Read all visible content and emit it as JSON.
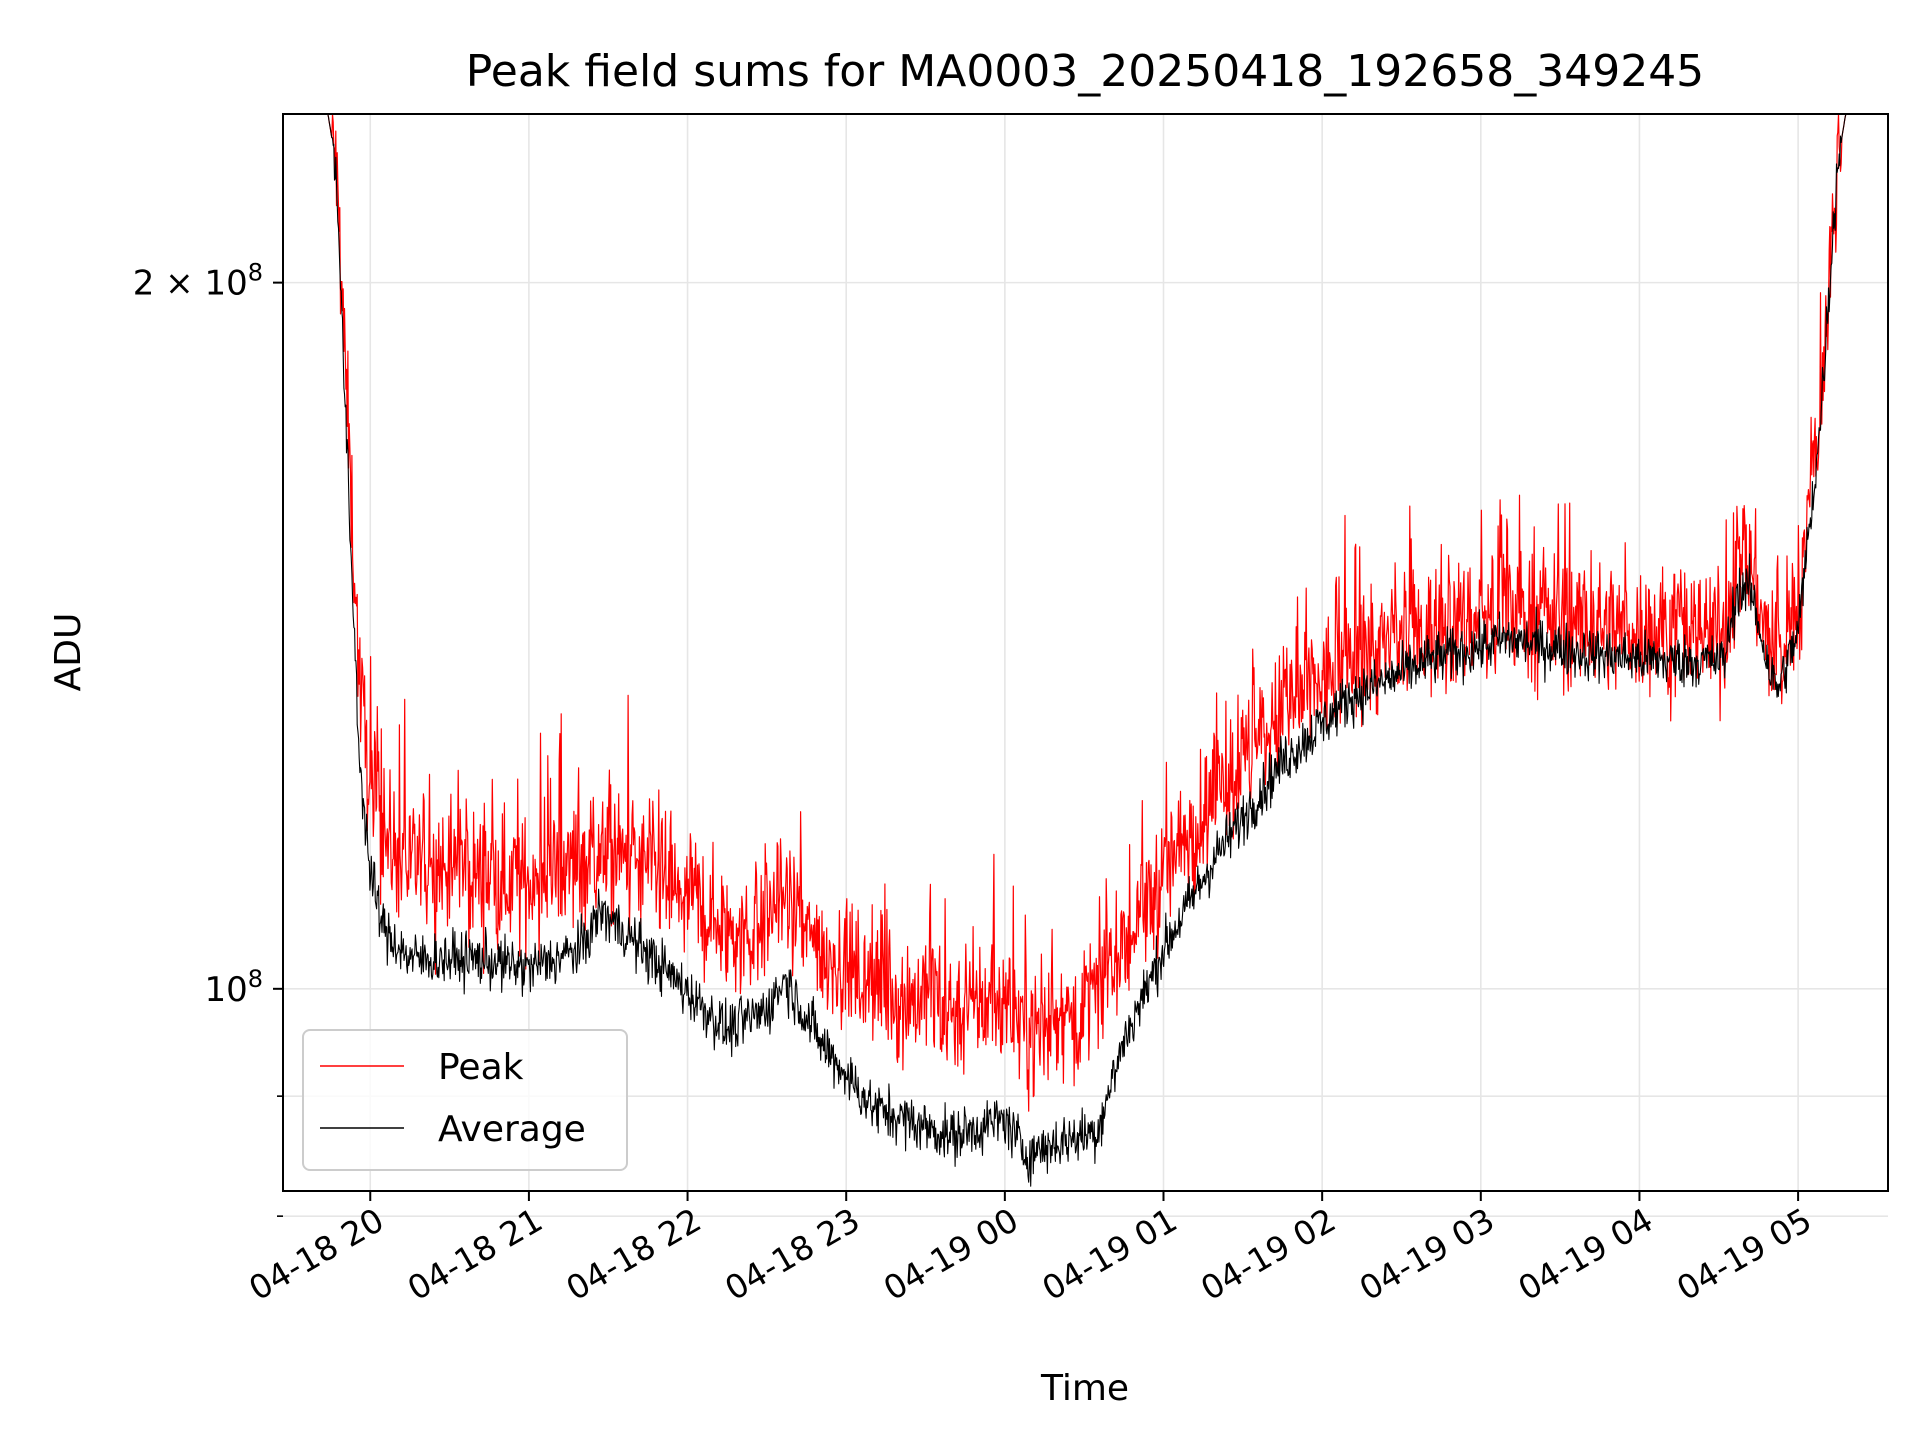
{
  "chart_data": {
    "type": "line",
    "title": "Peak field sums for MA0003_20250418_192658_349245",
    "xlabel": "Time",
    "ylabel": "ADU",
    "yscale": "log",
    "grid": true,
    "legend_position": "bottom-left",
    "xlim": [
      "2025-04-18 19:27",
      "2025-04-19 05:34"
    ],
    "ylim": [
      82000000,
      236000000
    ],
    "x_ticks": [
      {
        "t": "2025-04-18 20:00",
        "label": "04-18 20"
      },
      {
        "t": "2025-04-18 21:00",
        "label": "04-18 21"
      },
      {
        "t": "2025-04-18 22:00",
        "label": "04-18 22"
      },
      {
        "t": "2025-04-18 23:00",
        "label": "04-18 23"
      },
      {
        "t": "2025-04-19 00:00",
        "label": "04-19 00"
      },
      {
        "t": "2025-04-19 01:00",
        "label": "04-19 01"
      },
      {
        "t": "2025-04-19 02:00",
        "label": "04-19 02"
      },
      {
        "t": "2025-04-19 03:00",
        "label": "04-19 03"
      },
      {
        "t": "2025-04-19 04:00",
        "label": "04-19 04"
      },
      {
        "t": "2025-04-19 05:00",
        "label": "04-19 05"
      }
    ],
    "y_ticks": [
      {
        "value": 100000000,
        "mantissa": "",
        "base": "10",
        "exp": "8"
      },
      {
        "value": 200000000,
        "mantissa": "2 × ",
        "base": "10",
        "exp": "8"
      }
    ],
    "y_minor_ticks": [
      90000000,
      80000000
    ],
    "series": [
      {
        "name": "Peak",
        "color": "#ff0000",
        "noise": 0.06,
        "points": [
          [
            "2025-04-18 19:27",
            236000000
          ],
          [
            "2025-04-18 19:44",
            236000000
          ],
          [
            "2025-04-18 19:47",
            225000000
          ],
          [
            "2025-04-18 19:52",
            170000000
          ],
          [
            "2025-04-18 19:56",
            135000000
          ],
          [
            "2025-04-18 20:00",
            122000000
          ],
          [
            "2025-04-18 20:05",
            116000000
          ],
          [
            "2025-04-18 20:15",
            113000000
          ],
          [
            "2025-04-18 20:40",
            112000000
          ],
          [
            "2025-04-18 21:00",
            111000000
          ],
          [
            "2025-04-18 21:25",
            114000000
          ],
          [
            "2025-04-18 21:40",
            113000000
          ],
          [
            "2025-04-18 22:00",
            109000000
          ],
          [
            "2025-04-18 22:20",
            105000000
          ],
          [
            "2025-04-18 22:35",
            109000000
          ],
          [
            "2025-04-18 22:50",
            104000000
          ],
          [
            "2025-04-18 23:10",
            100000000
          ],
          [
            "2025-04-18 23:40",
            98000000
          ],
          [
            "2025-04-19 00:00",
            99000000
          ],
          [
            "2025-04-19 00:10",
            96000000
          ],
          [
            "2025-04-19 00:30",
            98000000
          ],
          [
            "2025-04-19 00:45",
            104000000
          ],
          [
            "2025-04-19 01:00",
            112000000
          ],
          [
            "2025-04-19 01:20",
            121000000
          ],
          [
            "2025-04-19 01:45",
            131000000
          ],
          [
            "2025-04-19 02:10",
            138000000
          ],
          [
            "2025-04-19 02:40",
            142000000
          ],
          [
            "2025-04-19 03:10",
            145000000
          ],
          [
            "2025-04-19 03:40",
            143000000
          ],
          [
            "2025-04-19 04:10",
            142000000
          ],
          [
            "2025-04-19 04:32",
            142000000
          ],
          [
            "2025-04-19 04:37",
            152000000
          ],
          [
            "2025-04-19 04:42",
            152000000
          ],
          [
            "2025-04-19 04:49",
            140000000
          ],
          [
            "2025-04-19 04:52",
            137000000
          ],
          [
            "2025-04-19 05:00",
            145000000
          ],
          [
            "2025-04-19 05:08",
            175000000
          ],
          [
            "2025-04-19 05:15",
            225000000
          ],
          [
            "2025-04-19 05:18",
            236000000
          ],
          [
            "2025-04-19 05:34",
            236000000
          ]
        ]
      },
      {
        "name": "Average",
        "color": "#000000",
        "noise": 0.025,
        "points": [
          [
            "2025-04-18 19:27",
            236000000
          ],
          [
            "2025-04-18 19:44",
            236000000
          ],
          [
            "2025-04-18 19:47",
            225000000
          ],
          [
            "2025-04-18 19:52",
            160000000
          ],
          [
            "2025-04-18 19:56",
            125000000
          ],
          [
            "2025-04-18 20:00",
            112000000
          ],
          [
            "2025-04-18 20:05",
            106000000
          ],
          [
            "2025-04-18 20:15",
            103000000
          ],
          [
            "2025-04-18 20:40",
            103000000
          ],
          [
            "2025-04-18 21:00",
            102000000
          ],
          [
            "2025-04-18 21:20",
            104000000
          ],
          [
            "2025-04-18 21:27",
            108000000
          ],
          [
            "2025-04-18 21:35",
            106000000
          ],
          [
            "2025-04-18 21:55",
            101000000
          ],
          [
            "2025-04-18 22:15",
            96000000
          ],
          [
            "2025-04-18 22:30",
            98000000
          ],
          [
            "2025-04-18 22:37",
            101000000
          ],
          [
            "2025-04-18 22:50",
            95000000
          ],
          [
            "2025-04-18 23:10",
            89000000
          ],
          [
            "2025-04-18 23:40",
            86500000
          ],
          [
            "2025-04-19 00:00",
            88000000
          ],
          [
            "2025-04-19 00:08",
            85000000
          ],
          [
            "2025-04-19 00:20",
            86000000
          ],
          [
            "2025-04-19 00:35",
            87000000
          ],
          [
            "2025-04-19 00:45",
            95000000
          ],
          [
            "2025-04-19 01:00",
            104000000
          ],
          [
            "2025-04-19 01:20",
            114000000
          ],
          [
            "2025-04-19 01:45",
            125000000
          ],
          [
            "2025-04-19 02:10",
            133000000
          ],
          [
            "2025-04-19 02:40",
            138000000
          ],
          [
            "2025-04-19 03:10",
            141000000
          ],
          [
            "2025-04-19 03:40",
            139000000
          ],
          [
            "2025-04-19 04:10",
            138000000
          ],
          [
            "2025-04-19 04:32",
            138000000
          ],
          [
            "2025-04-19 04:37",
            148000000
          ],
          [
            "2025-04-19 04:42",
            148000000
          ],
          [
            "2025-04-19 04:49",
            137000000
          ],
          [
            "2025-04-19 04:52",
            134000000
          ],
          [
            "2025-04-19 05:00",
            142000000
          ],
          [
            "2025-04-19 05:08",
            172000000
          ],
          [
            "2025-04-19 05:15",
            225000000
          ],
          [
            "2025-04-19 05:18",
            236000000
          ],
          [
            "2025-04-19 05:34",
            236000000
          ]
        ]
      }
    ]
  }
}
